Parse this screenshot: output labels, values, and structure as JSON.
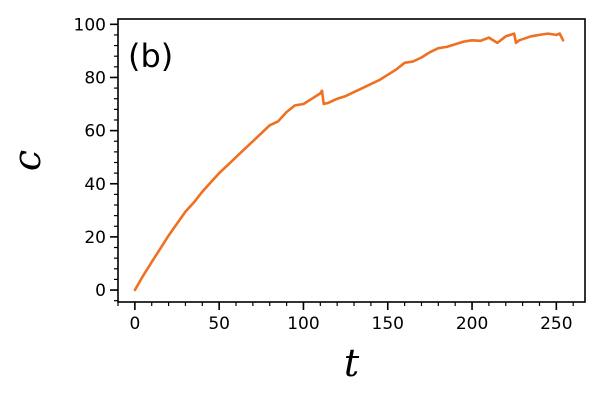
{
  "chart_data": {
    "type": "line",
    "panel_label": "(b)",
    "xlabel": "t",
    "ylabel": "c",
    "xlim": [
      -10,
      267
    ],
    "ylim": [
      -4.5,
      102
    ],
    "x_major_ticks": [
      0,
      50,
      100,
      150,
      200,
      250
    ],
    "x_minor_step": 10,
    "y_major_ticks": [
      0,
      20,
      40,
      60,
      80,
      100
    ],
    "y_minor_step": 4,
    "grid": false,
    "legend": "none",
    "line_color": "#f07022",
    "series": [
      {
        "x": [
          0,
          5,
          10,
          15,
          20,
          25,
          30,
          35,
          40,
          45,
          50,
          55,
          60,
          65,
          70,
          75,
          80,
          85,
          90,
          95,
          100,
          105,
          110,
          111,
          112,
          115,
          120,
          125,
          130,
          135,
          140,
          145,
          150,
          155,
          160,
          165,
          170,
          175,
          180,
          185,
          190,
          195,
          200,
          205,
          210,
          215,
          220,
          225,
          226,
          228,
          235,
          240,
          245,
          250,
          252,
          254
        ],
        "y": [
          0,
          5.5,
          10.5,
          15.5,
          20.5,
          25,
          29.5,
          33,
          37,
          40.5,
          44,
          47,
          50,
          53,
          56,
          59,
          62,
          63.5,
          67,
          69.5,
          70,
          72,
          74,
          75,
          70,
          70.5,
          72,
          73,
          74.5,
          76,
          77.5,
          79,
          81,
          83,
          85.5,
          86,
          87.5,
          89.5,
          91,
          91.5,
          92.5,
          93.5,
          94,
          93.8,
          95,
          93,
          95.5,
          96.5,
          93,
          94,
          95.5,
          96,
          96.5,
          96,
          96.5,
          94
        ]
      }
    ]
  }
}
